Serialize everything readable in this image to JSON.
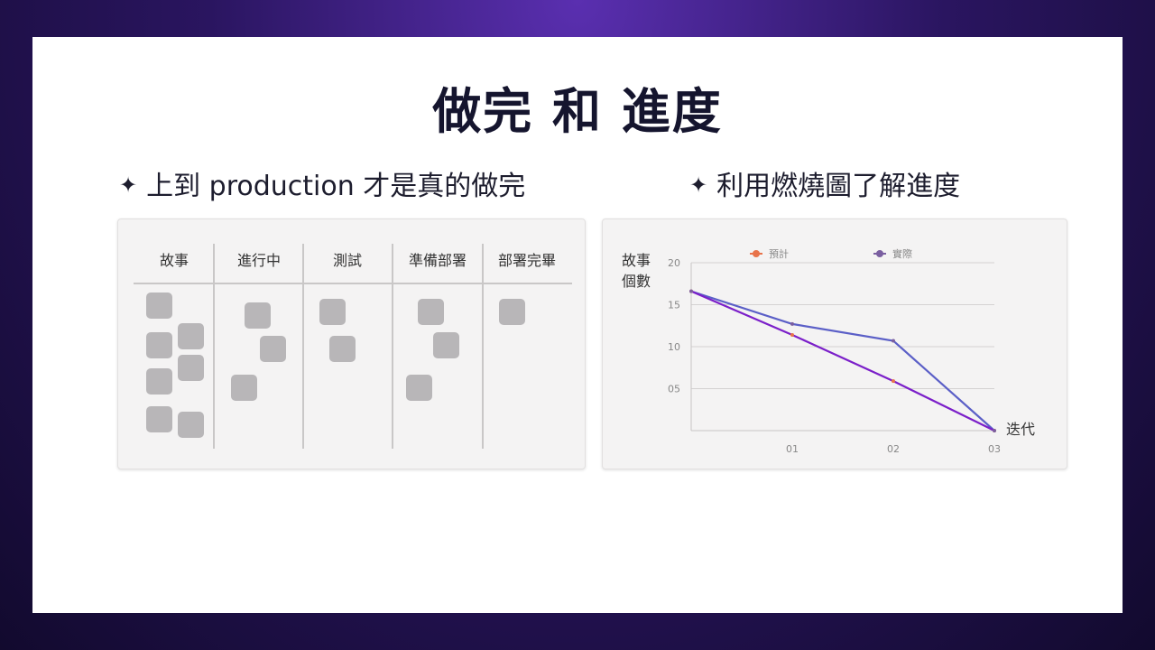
{
  "slide": {
    "title": "做完 和 進度",
    "bullets": [
      {
        "icon": "four-pointed-star-icon",
        "text": "上到 production 才是真的做完"
      },
      {
        "icon": "four-pointed-star-icon",
        "text": "利用燃燒圖了解進度"
      }
    ]
  },
  "board": {
    "columns": [
      "故事",
      "進行中",
      "測試",
      "準備部署",
      "部署完畢"
    ],
    "card_counts": [
      7,
      3,
      2,
      3,
      1
    ],
    "card_color": "#b8b6b8"
  },
  "chart_data": {
    "type": "line",
    "title": "",
    "ylabel": "故事\n個數",
    "ylabel_lines": [
      "故事",
      "個數"
    ],
    "xlabel": "迭代",
    "x": [
      0,
      1,
      2,
      3
    ],
    "x_tick_labels": [
      "01",
      "02",
      "03"
    ],
    "y_tick_labels": [
      "20",
      "15",
      "10",
      "05"
    ],
    "ylim": [
      0,
      20
    ],
    "xlim": [
      0,
      3
    ],
    "grid": true,
    "legend_position": "top",
    "series": [
      {
        "name": "預計",
        "color": "#7b1fc9",
        "marker_color": "#e8734a",
        "values": [
          16.6,
          11.4,
          5.9,
          0
        ]
      },
      {
        "name": "實際",
        "color": "#5b5fc7",
        "marker_color": "#7a5fa0",
        "values": [
          16.6,
          12.7,
          10.7,
          0
        ]
      }
    ]
  }
}
